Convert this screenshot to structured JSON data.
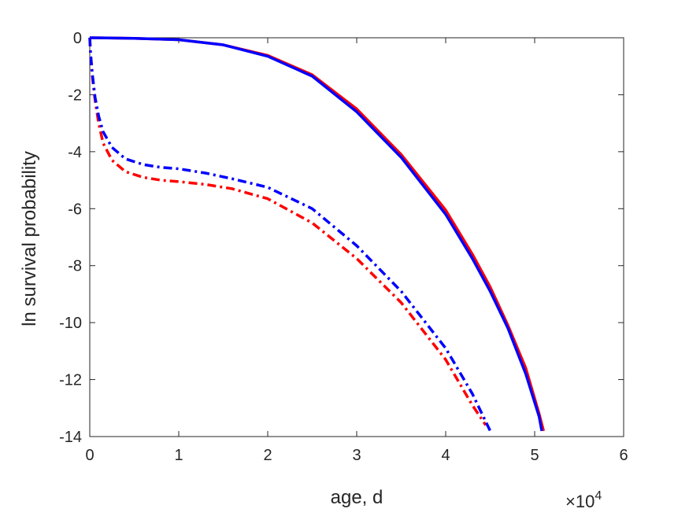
{
  "chart_data": {
    "type": "line",
    "title": "",
    "xlabel": "age, d",
    "ylabel": "ln survival probability",
    "x_scale_note": "×10",
    "x_scale_exp": "4",
    "xlim": [
      0,
      60000
    ],
    "ylim": [
      -14,
      0
    ],
    "xticks": [
      0,
      10000,
      20000,
      30000,
      40000,
      50000,
      60000
    ],
    "xtick_labels": [
      "0",
      "1",
      "2",
      "3",
      "4",
      "5",
      "6"
    ],
    "yticks": [
      0,
      -2,
      -4,
      -6,
      -8,
      -10,
      -12,
      -14
    ],
    "ytick_labels": [
      "0",
      "-2",
      "-4",
      "-6",
      "-8",
      "-10",
      "-12",
      "-14"
    ],
    "grid": false,
    "series": [
      {
        "color": "#ff0000",
        "style": "solid",
        "points": [
          [
            0,
            0
          ],
          [
            5000,
            -0.02
          ],
          [
            10000,
            -0.07
          ],
          [
            15000,
            -0.25
          ],
          [
            20000,
            -0.62
          ],
          [
            25000,
            -1.3
          ],
          [
            30000,
            -2.5
          ],
          [
            35000,
            -4.1
          ],
          [
            40000,
            -6.05
          ],
          [
            43000,
            -7.6
          ],
          [
            45000,
            -8.75
          ],
          [
            47000,
            -10.1
          ],
          [
            49000,
            -11.6
          ],
          [
            50500,
            -13.2
          ],
          [
            51000,
            -13.8
          ]
        ]
      },
      {
        "color": "#0000ff",
        "style": "solid",
        "points": [
          [
            0,
            0
          ],
          [
            5000,
            -0.02
          ],
          [
            10000,
            -0.07
          ],
          [
            15000,
            -0.25
          ],
          [
            20000,
            -0.65
          ],
          [
            25000,
            -1.35
          ],
          [
            30000,
            -2.6
          ],
          [
            35000,
            -4.2
          ],
          [
            40000,
            -6.2
          ],
          [
            43000,
            -7.75
          ],
          [
            45000,
            -8.9
          ],
          [
            47000,
            -10.2
          ],
          [
            49000,
            -11.8
          ],
          [
            50500,
            -13.3
          ],
          [
            50800,
            -13.8
          ]
        ]
      },
      {
        "color": "#ff0000",
        "style": "dashdot",
        "points": [
          [
            0,
            0
          ],
          [
            100,
            -0.6
          ],
          [
            300,
            -1.4
          ],
          [
            600,
            -2.2
          ],
          [
            1000,
            -3.0
          ],
          [
            1500,
            -3.7
          ],
          [
            2500,
            -4.3
          ],
          [
            4000,
            -4.7
          ],
          [
            6000,
            -4.9
          ],
          [
            8000,
            -5.0
          ],
          [
            10000,
            -5.05
          ],
          [
            13000,
            -5.15
          ],
          [
            16000,
            -5.3
          ],
          [
            20000,
            -5.65
          ],
          [
            25000,
            -6.5
          ],
          [
            30000,
            -7.75
          ],
          [
            35000,
            -9.3
          ],
          [
            40000,
            -11.3
          ],
          [
            43000,
            -12.9
          ],
          [
            44500,
            -13.6
          ]
        ]
      },
      {
        "color": "#0000ff",
        "style": "dashdot",
        "points": [
          [
            0,
            0
          ],
          [
            100,
            -0.6
          ],
          [
            300,
            -1.3
          ],
          [
            600,
            -2.1
          ],
          [
            1000,
            -2.75
          ],
          [
            1500,
            -3.3
          ],
          [
            2500,
            -3.85
          ],
          [
            4000,
            -4.25
          ],
          [
            6000,
            -4.45
          ],
          [
            8000,
            -4.55
          ],
          [
            10000,
            -4.6
          ],
          [
            13000,
            -4.75
          ],
          [
            16000,
            -4.95
          ],
          [
            20000,
            -5.25
          ],
          [
            25000,
            -6.0
          ],
          [
            30000,
            -7.3
          ],
          [
            35000,
            -8.9
          ],
          [
            40000,
            -10.9
          ],
          [
            43000,
            -12.5
          ],
          [
            45000,
            -13.8
          ]
        ]
      }
    ]
  }
}
